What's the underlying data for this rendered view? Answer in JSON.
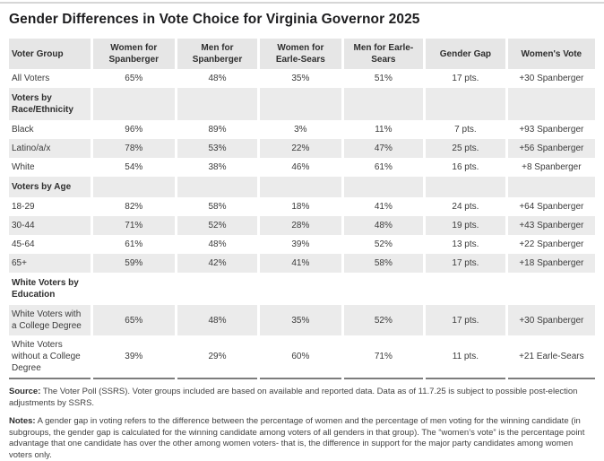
{
  "page": {
    "title": "Gender Differences in Vote Choice for Virginia Governor 2025"
  },
  "colors": {
    "header_row_gray": "#e6e6e6",
    "stripe_gray": "#ebebeb",
    "table_bottom_border": "#7d7d7d",
    "top_rule": "#d6d6d6",
    "title_text": "#1d1d1f",
    "body_text": "#3b3b3b"
  },
  "chart_data": {
    "type": "table",
    "title": "Gender Differences in Vote Choice for Virginia Governor 2025",
    "columns": [
      "Voter Group",
      "Women for Spanberger",
      "Men for Spanberger",
      "Women for Earle-Sears",
      "Men for Earle-Sears",
      "Gender Gap",
      "Women's Vote"
    ],
    "column_widths": [
      "14.1%",
      "14.4%",
      "14.1%",
      "14.3%",
      "14.0%",
      "14.0%",
      "15.1%"
    ],
    "rows": [
      {
        "kind": "data",
        "group": "All Voters",
        "values": [
          "65%",
          "48%",
          "35%",
          "51%",
          "17 pts.",
          "+30 Spanberger"
        ]
      },
      {
        "kind": "section",
        "group": "Voters by Race/Ethnicity",
        "values": [
          "",
          "",
          "",
          "",
          "",
          ""
        ]
      },
      {
        "kind": "data",
        "group": "Black",
        "values": [
          "96%",
          "89%",
          "3%",
          "11%",
          "7 pts.",
          "+93 Spanberger"
        ]
      },
      {
        "kind": "data",
        "group": "Latino/a/x",
        "values": [
          "78%",
          "53%",
          "22%",
          "47%",
          "25 pts.",
          "+56 Spanberger"
        ]
      },
      {
        "kind": "data",
        "group": "White",
        "values": [
          "54%",
          "38%",
          "46%",
          "61%",
          "16 pts.",
          "+8 Spanberger"
        ]
      },
      {
        "kind": "section",
        "group": "Voters by Age",
        "values": [
          "",
          "",
          "",
          "",
          "",
          ""
        ]
      },
      {
        "kind": "data",
        "group": "18-29",
        "values": [
          "82%",
          "58%",
          "18%",
          "41%",
          "24 pts.",
          "+64 Spanberger"
        ]
      },
      {
        "kind": "data",
        "group": "30-44",
        "values": [
          "71%",
          "52%",
          "28%",
          "48%",
          "19 pts.",
          "+43 Spanberger"
        ]
      },
      {
        "kind": "data",
        "group": "45-64",
        "values": [
          "61%",
          "48%",
          "39%",
          "52%",
          "13 pts.",
          "+22 Spanberger"
        ]
      },
      {
        "kind": "data",
        "group": "65+",
        "values": [
          "59%",
          "42%",
          "41%",
          "58%",
          "17 pts.",
          "+18 Spanberger"
        ]
      },
      {
        "kind": "section",
        "group": "White Voters by Education",
        "values": [
          "",
          "",
          "",
          "",
          "",
          ""
        ]
      },
      {
        "kind": "data",
        "group": "White Voters with a College Degree",
        "values": [
          "65%",
          "48%",
          "35%",
          "52%",
          "17 pts.",
          "+30 Spanberger"
        ]
      },
      {
        "kind": "data",
        "group": "White Voters without a College Degree",
        "values": [
          "39%",
          "29%",
          "60%",
          "71%",
          "11 pts.",
          "+21 Earle-Sears"
        ]
      }
    ]
  },
  "footer": {
    "source_label": "Source:",
    "source_text": " The Voter Poll (SSRS). Voter groups included are based on available and reported data. Data as of 11.7.25 is subject to possible post-election adjustments by SSRS.",
    "notes_label": "Notes:",
    "notes_text": " A gender gap in voting refers to the difference between the percentage of women and the percentage of men voting for the winning candidate (in subgroups, the gender gap is calculated for the winning candidate among voters of all genders in that group). The “women’s vote” is the percentage point advantage that one candidate has over the other among women voters- that is, the difference in support for the major party candidates among women voters only."
  }
}
